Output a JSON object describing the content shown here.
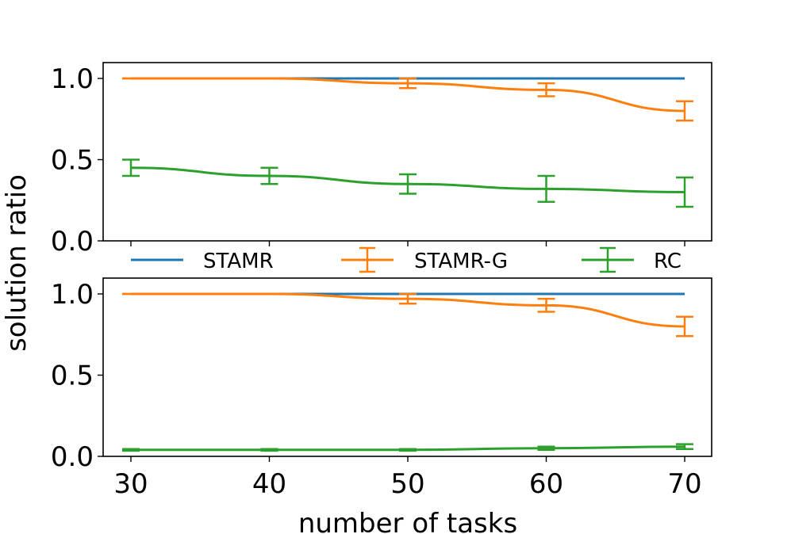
{
  "chart_data": {
    "type": "line",
    "xlabel": "number of tasks",
    "ylabel": "solution ratio",
    "x": [
      30,
      40,
      50,
      60,
      70
    ],
    "xticks": [
      "30",
      "40",
      "50",
      "60",
      "70"
    ],
    "yticks": [
      "0.0",
      "0.5",
      "1.0"
    ],
    "ylim": [
      0,
      1.1
    ],
    "legend": {
      "placement": "between-panels",
      "entries": [
        "STAMR",
        "STAMR-G",
        "RC"
      ]
    },
    "colors": {
      "STAMR": "#1f77b4",
      "STAMR-G": "#ff7f0e",
      "RC": "#2ca02c"
    },
    "panels": [
      {
        "name": "top",
        "series": [
          {
            "name": "STAMR",
            "values": [
              1.0,
              1.0,
              1.0,
              1.0,
              1.0
            ],
            "errors": null
          },
          {
            "name": "STAMR-G",
            "values": [
              1.0,
              1.0,
              0.97,
              0.93,
              0.8
            ],
            "errors": [
              0,
              0,
              0.03,
              0.04,
              0.06
            ]
          },
          {
            "name": "RC",
            "values": [
              0.45,
              0.4,
              0.35,
              0.32,
              0.3
            ],
            "errors": [
              0.05,
              0.05,
              0.06,
              0.08,
              0.09
            ]
          }
        ]
      },
      {
        "name": "bottom",
        "series": [
          {
            "name": "STAMR",
            "values": [
              1.0,
              1.0,
              1.0,
              1.0,
              1.0
            ],
            "errors": null
          },
          {
            "name": "STAMR-G",
            "values": [
              1.0,
              1.0,
              0.97,
              0.93,
              0.8
            ],
            "errors": [
              0,
              0,
              0.03,
              0.04,
              0.06
            ]
          },
          {
            "name": "RC",
            "values": [
              0.04,
              0.04,
              0.04,
              0.05,
              0.06
            ],
            "errors": [
              0.005,
              0.005,
              0.005,
              0.01,
              0.015
            ]
          }
        ]
      }
    ]
  }
}
